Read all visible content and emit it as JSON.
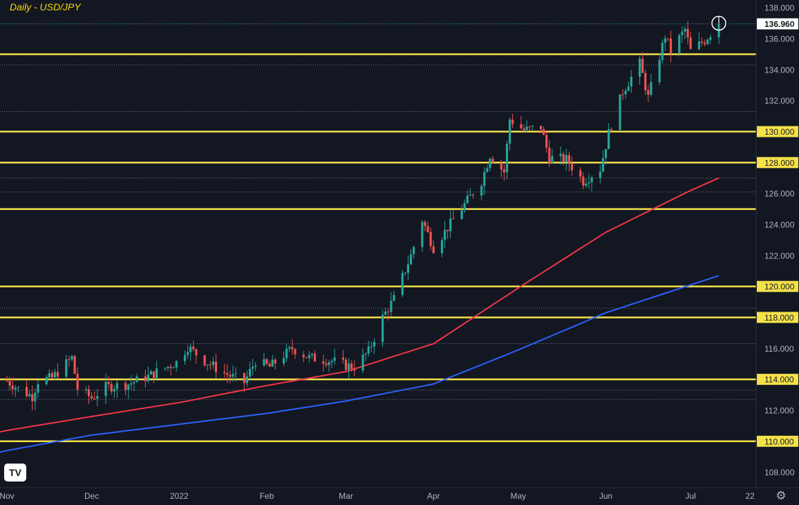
{
  "title": "Daily - USD/JPY",
  "logo_text": "TV",
  "settings_icon": "gear-icon",
  "colors": {
    "background": "#131722",
    "up": "#26a69a",
    "down": "#ef5350",
    "level": "#f5e14a",
    "ma_fast": "#f23645",
    "ma_slow": "#2962ff",
    "axis_text": "#b2b5be",
    "dotted": "#787b86"
  },
  "chart_data": {
    "type": "candlestick",
    "symbol": "USD/JPY",
    "interval": "Daily",
    "ylim": [
      107,
      138.5
    ],
    "y_ticks": [
      "108.000",
      "110.000",
      "112.000",
      "114.000",
      "116.000",
      "118.000",
      "120.000",
      "122.000",
      "124.000",
      "126.000",
      "128.000",
      "130.000",
      "132.000",
      "134.000",
      "136.000",
      "138.000"
    ],
    "highlighted_ticks": [
      "110.000",
      "114.000",
      "118.000",
      "120.000",
      "125.000",
      "128.000",
      "130.000",
      "135.000"
    ],
    "current_price": "136.960",
    "x_labels": [
      "Nov",
      "Dec",
      "2022",
      "Feb",
      "Mar",
      "Apr",
      "May",
      "Jun",
      "Jul",
      "22"
    ],
    "key_levels": [
      110,
      114,
      118,
      120,
      125,
      128,
      130,
      135
    ],
    "dotted_levels": [
      112.7,
      113.3,
      116.3,
      118.6,
      126.1,
      127.0,
      131.3,
      134.3
    ],
    "close_path": [
      {
        "date": "2021-11-01",
        "close": 113.9
      },
      {
        "date": "2021-11-05",
        "close": 113.4
      },
      {
        "date": "2021-11-10",
        "close": 112.9
      },
      {
        "date": "2021-11-12",
        "close": 113.9
      },
      {
        "date": "2021-11-17",
        "close": 114.1
      },
      {
        "date": "2021-11-24",
        "close": 115.4
      },
      {
        "date": "2021-11-26",
        "close": 113.4
      },
      {
        "date": "2021-12-01",
        "close": 112.8
      },
      {
        "date": "2021-12-06",
        "close": 113.5
      },
      {
        "date": "2021-12-14",
        "close": 113.7
      },
      {
        "date": "2021-12-21",
        "close": 114.2
      },
      {
        "date": "2021-12-31",
        "close": 115.1
      },
      {
        "date": "2022-01-04",
        "close": 116.1
      },
      {
        "date": "2022-01-10",
        "close": 115.2
      },
      {
        "date": "2022-01-17",
        "close": 114.4
      },
      {
        "date": "2022-01-24",
        "close": 113.8
      },
      {
        "date": "2022-01-28",
        "close": 115.2
      },
      {
        "date": "2022-02-02",
        "close": 114.8
      },
      {
        "date": "2022-02-10",
        "close": 116.0
      },
      {
        "date": "2022-02-16",
        "close": 115.4
      },
      {
        "date": "2022-02-24",
        "close": 115.2
      },
      {
        "date": "2022-03-01",
        "close": 114.9
      },
      {
        "date": "2022-03-04",
        "close": 114.8
      },
      {
        "date": "2022-03-09",
        "close": 115.8
      },
      {
        "date": "2022-03-14",
        "close": 118.0
      },
      {
        "date": "2022-03-18",
        "close": 119.2
      },
      {
        "date": "2022-03-24",
        "close": 122.0
      },
      {
        "date": "2022-03-28",
        "close": 124.3
      },
      {
        "date": "2022-04-01",
        "close": 122.5
      },
      {
        "date": "2022-04-06",
        "close": 123.8
      },
      {
        "date": "2022-04-12",
        "close": 125.3
      },
      {
        "date": "2022-04-18",
        "close": 126.8
      },
      {
        "date": "2022-04-21",
        "close": 128.5
      },
      {
        "date": "2022-04-26",
        "close": 127.4
      },
      {
        "date": "2022-04-28",
        "close": 130.8
      },
      {
        "date": "2022-05-03",
        "close": 130.1
      },
      {
        "date": "2022-05-09",
        "close": 130.3
      },
      {
        "date": "2022-05-12",
        "close": 128.3
      },
      {
        "date": "2022-05-18",
        "close": 128.2
      },
      {
        "date": "2022-05-24",
        "close": 126.8
      },
      {
        "date": "2022-05-30",
        "close": 127.6
      },
      {
        "date": "2022-06-02",
        "close": 129.9
      },
      {
        "date": "2022-06-07",
        "close": 132.6
      },
      {
        "date": "2022-06-13",
        "close": 134.4
      },
      {
        "date": "2022-06-16",
        "close": 132.2
      },
      {
        "date": "2022-06-22",
        "close": 136.2
      },
      {
        "date": "2022-06-24",
        "close": 135.2
      },
      {
        "date": "2022-06-29",
        "close": 136.6
      },
      {
        "date": "2022-07-01",
        "close": 135.2
      },
      {
        "date": "2022-07-06",
        "close": 135.9
      },
      {
        "date": "2022-07-11",
        "close": 136.96
      }
    ],
    "ma_fast": [
      {
        "date": "2021-11-01",
        "value": 110.7
      },
      {
        "date": "2021-12-01",
        "value": 111.6
      },
      {
        "date": "2022-01-01",
        "value": 112.5
      },
      {
        "date": "2022-02-01",
        "value": 113.6
      },
      {
        "date": "2022-03-01",
        "value": 114.5
      },
      {
        "date": "2022-04-01",
        "value": 116.3
      },
      {
        "date": "2022-05-01",
        "value": 119.9
      },
      {
        "date": "2022-06-01",
        "value": 123.5
      },
      {
        "date": "2022-07-01",
        "value": 126.2
      },
      {
        "date": "2022-07-11",
        "value": 127.0
      }
    ],
    "ma_slow": [
      {
        "date": "2021-11-01",
        "value": 109.4
      },
      {
        "date": "2021-12-01",
        "value": 110.4
      },
      {
        "date": "2022-01-01",
        "value": 111.1
      },
      {
        "date": "2022-02-01",
        "value": 111.8
      },
      {
        "date": "2022-03-01",
        "value": 112.6
      },
      {
        "date": "2022-04-01",
        "value": 113.7
      },
      {
        "date": "2022-05-01",
        "value": 115.9
      },
      {
        "date": "2022-06-01",
        "value": 118.3
      },
      {
        "date": "2022-07-01",
        "value": 120.1
      },
      {
        "date": "2022-07-11",
        "value": 120.7
      }
    ],
    "marker_price": 137.0
  }
}
